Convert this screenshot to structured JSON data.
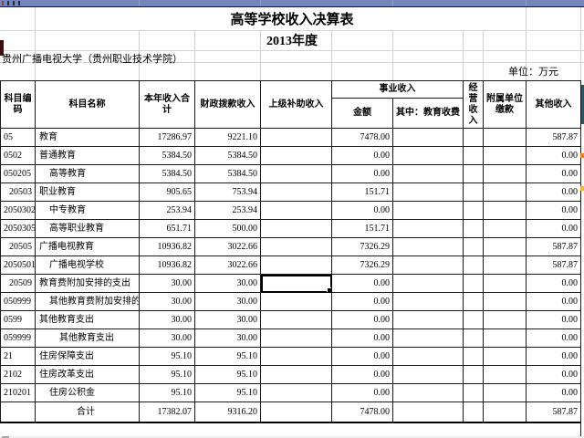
{
  "colors": {
    "top_bar": "#7585bd",
    "grid_border": "#1a1a1a",
    "selection_border": "#000000",
    "sliver_teal": "#24566b",
    "marker_orange": "#e8842c",
    "marker_yellow": "#f2b63a",
    "left_block_red": "#3f0d0d"
  },
  "sheet": {
    "title": "高等学校收入决算表",
    "subtitle": "2013年度",
    "org_name": "贵州广播电视大学（贵州职业技术学院）",
    "unit_label": "单位：万元"
  },
  "table": {
    "headers": {
      "code": "科目编码",
      "name": "科目名称",
      "total_income": "本年收入合计",
      "fiscal": "财政拨款收入",
      "superior": "上级补助收入",
      "business_group": "事业收入",
      "business_amount": "金额",
      "business_edu_fee": "其中：教育收费",
      "operating": "经营收入",
      "affiliated": "附属单位缴款",
      "other": "其他收入"
    },
    "rows": [
      {
        "code": "05",
        "code_align": "left",
        "name": "教育",
        "indent": 0,
        "total": "17286.97",
        "fiscal": "9221.10",
        "superior": "",
        "amount": "7478.00",
        "edu_fee": "",
        "operating": "",
        "affiliated": "",
        "other": "587.87"
      },
      {
        "code": "0502",
        "code_align": "left",
        "name": "普通教育",
        "indent": 0,
        "total": "5384.50",
        "fiscal": "5384.50",
        "superior": "",
        "amount": "0.00",
        "edu_fee": "",
        "operating": "",
        "affiliated": "",
        "other": "0.00"
      },
      {
        "code": "050205",
        "code_align": "left",
        "name": "高等教育",
        "indent": 1,
        "total": "5384.50",
        "fiscal": "5384.50",
        "superior": "",
        "amount": "0.00",
        "edu_fee": "",
        "operating": "",
        "affiliated": "",
        "other": "0.00"
      },
      {
        "code": "20503",
        "code_align": "right",
        "name": "职业教育",
        "indent": 0,
        "total": "905.65",
        "fiscal": "753.94",
        "superior": "",
        "amount": "151.71",
        "edu_fee": "",
        "operating": "",
        "affiliated": "",
        "other": "0.00"
      },
      {
        "code": "2050302",
        "code_align": "right",
        "name": "中专教育",
        "indent": 1,
        "total": "253.94",
        "fiscal": "253.94",
        "superior": "",
        "amount": "0.00",
        "edu_fee": "",
        "operating": "",
        "affiliated": "",
        "other": "0.00"
      },
      {
        "code": "2050305",
        "code_align": "right",
        "name": "高等职业教育",
        "indent": 1,
        "total": "651.71",
        "fiscal": "500.00",
        "superior": "",
        "amount": "151.71",
        "edu_fee": "",
        "operating": "",
        "affiliated": "",
        "other": "0.00"
      },
      {
        "code": "20505",
        "code_align": "right",
        "name": "广播电视教育",
        "indent": 0,
        "total": "10936.82",
        "fiscal": "3022.66",
        "superior": "",
        "amount": "7326.29",
        "edu_fee": "",
        "operating": "",
        "affiliated": "",
        "other": "587.87"
      },
      {
        "code": "2050501",
        "code_align": "right",
        "name": "广播电视学校",
        "indent": 1,
        "total": "10936.82",
        "fiscal": "3022.66",
        "superior": "",
        "amount": "7326.29",
        "edu_fee": "",
        "operating": "",
        "affiliated": "",
        "other": "587.87"
      },
      {
        "code": "20509",
        "code_align": "right",
        "name": "教育费附加安排的支出",
        "indent": 0,
        "total": "30.00",
        "fiscal": "30.00",
        "superior": "",
        "amount": "0.00",
        "edu_fee": "",
        "operating": "",
        "affiliated": "",
        "other": "0.00",
        "selected_cell": "superior"
      },
      {
        "code": "050999",
        "code_align": "left",
        "name": "其他教育费附加安排的支出",
        "indent": 1,
        "total": "30.00",
        "fiscal": "30.00",
        "superior": "",
        "amount": "0.00",
        "edu_fee": "",
        "operating": "",
        "affiliated": "",
        "other": "0.00"
      },
      {
        "code": "0599",
        "code_align": "left",
        "name": "其他教育支出",
        "indent": 0,
        "total": "30.00",
        "fiscal": "30.00",
        "superior": "",
        "amount": "0.00",
        "edu_fee": "",
        "operating": "",
        "affiliated": "",
        "other": "0.00"
      },
      {
        "code": "059999",
        "code_align": "left",
        "name": "其他教育支出",
        "indent": 2,
        "total": "30.00",
        "fiscal": "30.00",
        "superior": "",
        "amount": "0.00",
        "edu_fee": "",
        "operating": "",
        "affiliated": "",
        "other": "0.00"
      },
      {
        "code": "21",
        "code_align": "left",
        "name": "住房保障支出",
        "indent": 0,
        "total": "95.10",
        "fiscal": "95.10",
        "superior": "",
        "amount": "0.00",
        "edu_fee": "",
        "operating": "",
        "affiliated": "",
        "other": "0.00"
      },
      {
        "code": "2102",
        "code_align": "left",
        "name": "住房改革支出",
        "indent": 0,
        "total": "95.10",
        "fiscal": "95.10",
        "superior": "",
        "amount": "0.00",
        "edu_fee": "",
        "operating": "",
        "affiliated": "",
        "other": "0.00"
      },
      {
        "code": "210201",
        "code_align": "left",
        "name": "住房公积金",
        "indent": 1,
        "total": "95.10",
        "fiscal": "95.10",
        "superior": "",
        "amount": "0.00",
        "edu_fee": "",
        "operating": "",
        "affiliated": "",
        "other": "0.00"
      },
      {
        "code": "",
        "code_align": "right",
        "name": "合计",
        "indent": 0,
        "is_total": true,
        "total": "17382.07",
        "fiscal": "9316.20",
        "superior": "",
        "amount": "7478.00",
        "edu_fee": "",
        "operating": "",
        "affiliated": "",
        "other": "587.87"
      }
    ]
  }
}
